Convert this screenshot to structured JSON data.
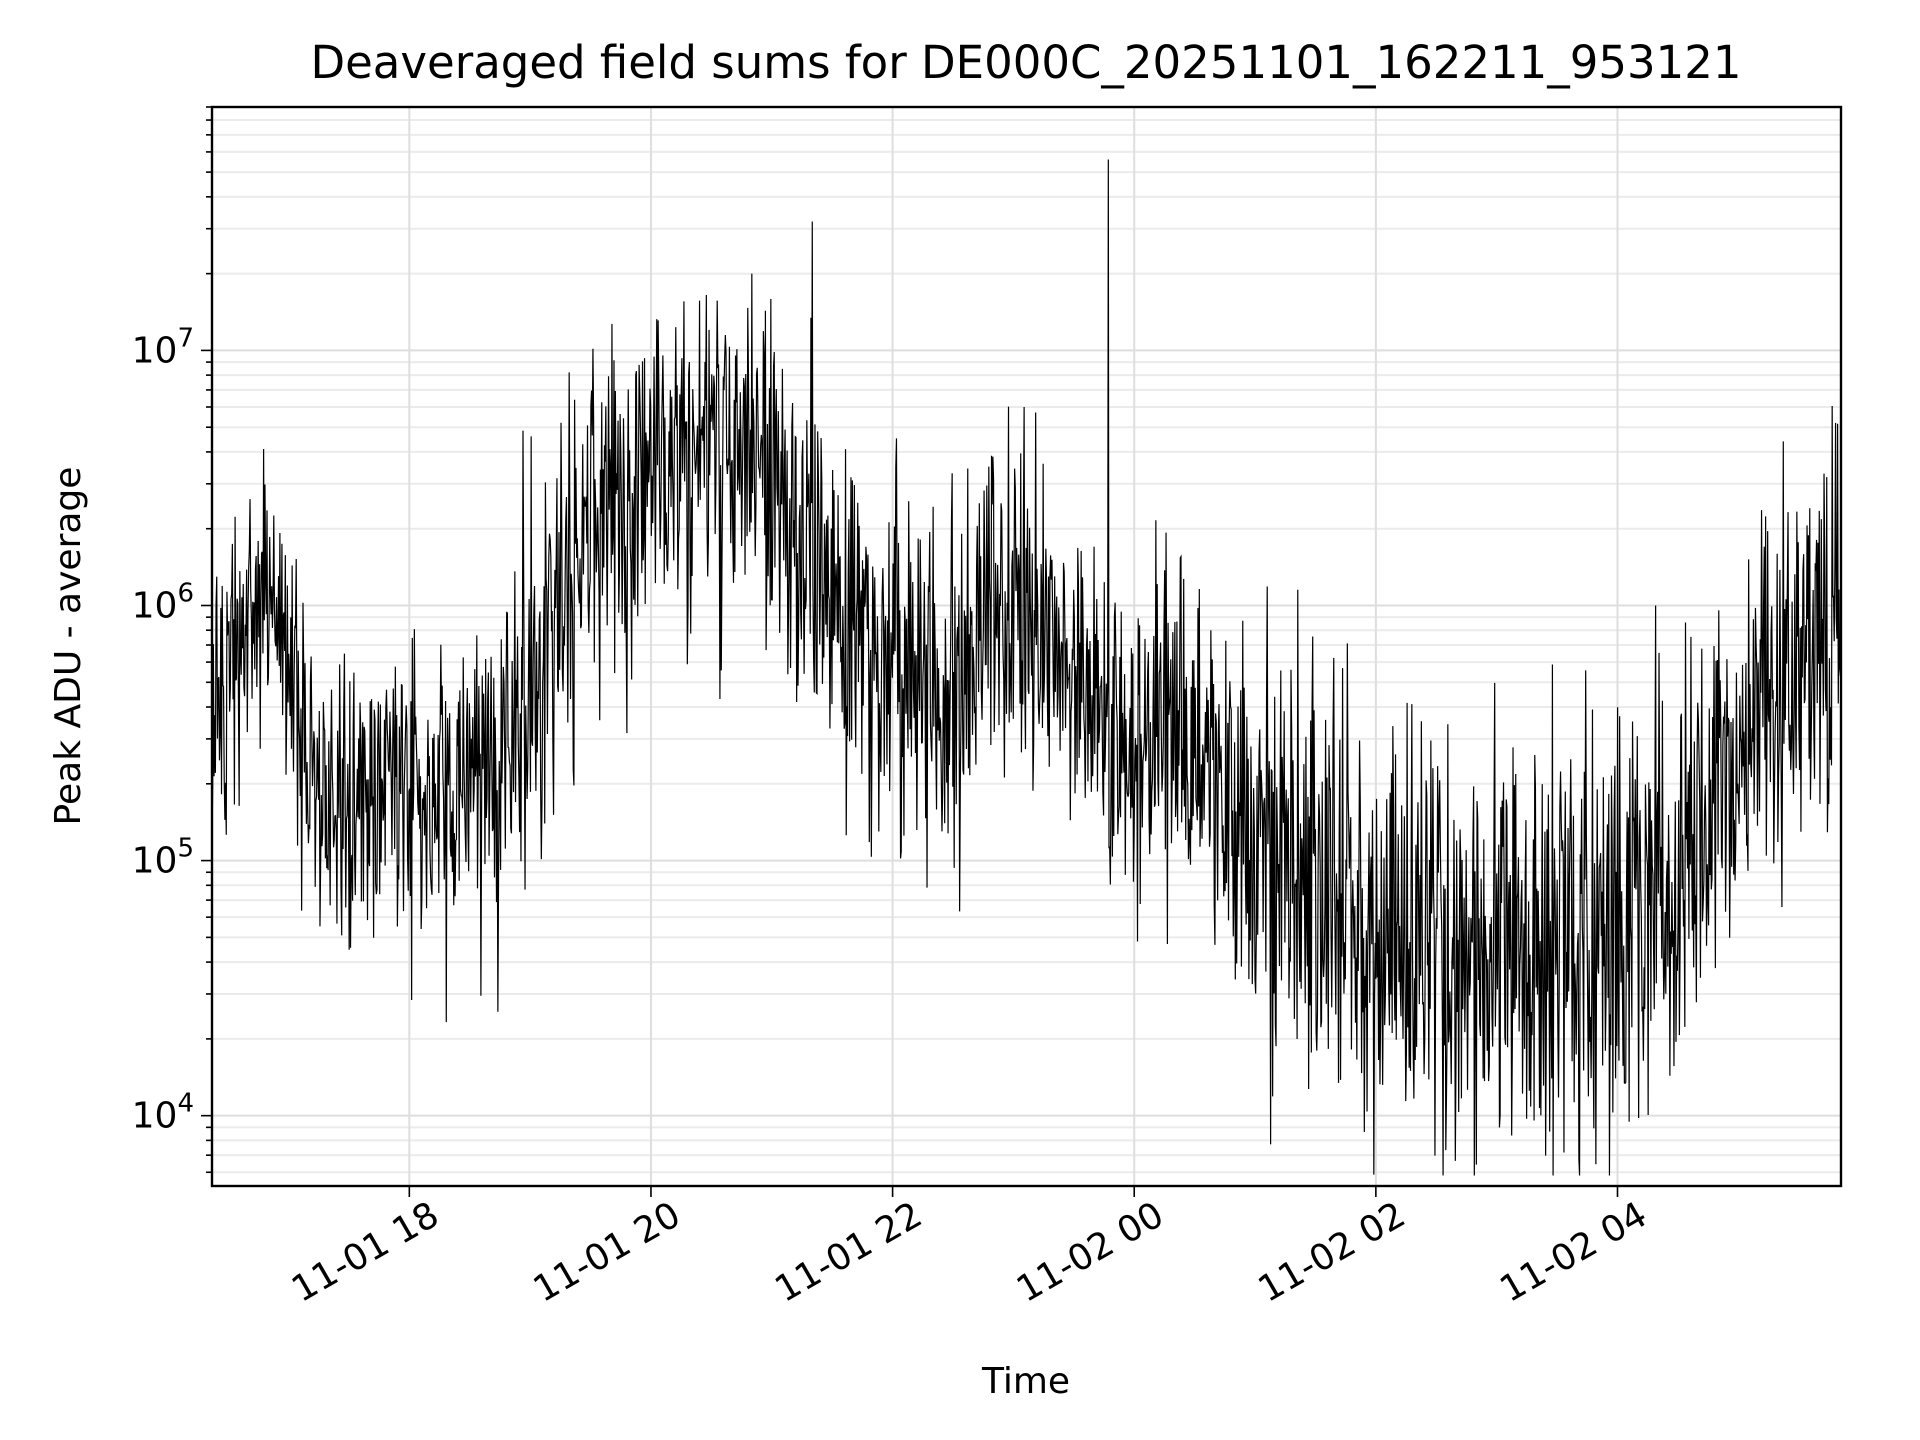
{
  "chart_data": {
    "type": "line",
    "title": "Deaveraged field sums for DE000C_20251101_162211_953121",
    "xlabel": "Time",
    "ylabel": "Peak ADU - average",
    "y_scale": "log",
    "ylim": [
      5300,
      90000000
    ],
    "xlim": [
      "2025-11-01 16:22",
      "2025-11-02 05:51"
    ],
    "grid": true,
    "x_ticks": [
      {
        "t": "2025-11-01 18:00",
        "label": "11-01 18"
      },
      {
        "t": "2025-11-01 20:00",
        "label": "11-01 20"
      },
      {
        "t": "2025-11-01 22:00",
        "label": "11-01 22"
      },
      {
        "t": "2025-11-02 00:00",
        "label": "11-02 00"
      },
      {
        "t": "2025-11-02 02:00",
        "label": "11-02 02"
      },
      {
        "t": "2025-11-02 04:00",
        "label": "11-02 04"
      }
    ],
    "y_ticks": [
      {
        "value": 10000,
        "base": "10",
        "exp": "4"
      },
      {
        "value": 100000,
        "base": "10",
        "exp": "5"
      },
      {
        "value": 1000000,
        "base": "10",
        "exp": "6"
      },
      {
        "value": 10000000,
        "base": "10",
        "exp": "7"
      }
    ],
    "envelope": [
      {
        "t": "2025-11-01 16:22",
        "mid": 300000,
        "spread": 2.0
      },
      {
        "t": "2025-11-01 16:35",
        "mid": 500000,
        "spread": 1.8
      },
      {
        "t": "2025-11-01 16:45",
        "mid": 1200000,
        "spread": 1.5
      },
      {
        "t": "2025-11-01 17:00",
        "mid": 600000,
        "spread": 1.7
      },
      {
        "t": "2025-11-01 17:15",
        "mid": 150000,
        "spread": 1.6
      },
      {
        "t": "2025-11-01 18:00",
        "mid": 180000,
        "spread": 1.8
      },
      {
        "t": "2025-11-01 18:45",
        "mid": 200000,
        "spread": 1.9
      },
      {
        "t": "2025-11-01 19:00",
        "mid": 500000,
        "spread": 2.2
      },
      {
        "t": "2025-11-01 19:30",
        "mid": 2000000,
        "spread": 2.3
      },
      {
        "t": "2025-11-01 20:00",
        "mid": 3500000,
        "spread": 1.9
      },
      {
        "t": "2025-11-01 20:30",
        "mid": 4000000,
        "spread": 2.0
      },
      {
        "t": "2025-11-01 21:00",
        "mid": 3500000,
        "spread": 2.3
      },
      {
        "t": "2025-11-01 21:30",
        "mid": 1000000,
        "spread": 2.3
      },
      {
        "t": "2025-11-01 22:00",
        "mid": 500000,
        "spread": 2.2
      },
      {
        "t": "2025-11-01 22:30",
        "mid": 400000,
        "spread": 2.2
      },
      {
        "t": "2025-11-01 22:45",
        "mid": 1000000,
        "spread": 1.9
      },
      {
        "t": "2025-11-01 23:15",
        "mid": 800000,
        "spread": 2.0
      },
      {
        "t": "2025-11-01 23:45",
        "mid": 300000,
        "spread": 2.1
      },
      {
        "t": "2025-11-02 00:30",
        "mid": 250000,
        "spread": 2.0
      },
      {
        "t": "2025-11-02 01:00",
        "mid": 100000,
        "spread": 2.4
      },
      {
        "t": "2025-11-02 01:30",
        "mid": 80000,
        "spread": 2.6
      },
      {
        "t": "2025-11-02 02:00",
        "mid": 60000,
        "spread": 2.7
      },
      {
        "t": "2025-11-02 03:00",
        "mid": 50000,
        "spread": 2.8
      },
      {
        "t": "2025-11-02 03:45",
        "mid": 50000,
        "spread": 2.8
      },
      {
        "t": "2025-11-02 04:30",
        "mid": 100000,
        "spread": 2.5
      },
      {
        "t": "2025-11-02 05:00",
        "mid": 300000,
        "spread": 2.2
      },
      {
        "t": "2025-11-02 05:30",
        "mid": 700000,
        "spread": 2.2
      },
      {
        "t": "2025-11-02 05:51",
        "mid": 800000,
        "spread": 2.2
      }
    ],
    "spikes": [
      {
        "t": "2025-11-01 21:20",
        "value": 32000000
      },
      {
        "t": "2025-11-01 23:47",
        "value": 56000000
      },
      {
        "t": "2025-11-01 20:50",
        "value": 20000000
      },
      {
        "t": "2025-11-01 23:05",
        "value": 6000000
      },
      {
        "t": "2025-11-02 05:48",
        "value": 5200000
      }
    ]
  }
}
